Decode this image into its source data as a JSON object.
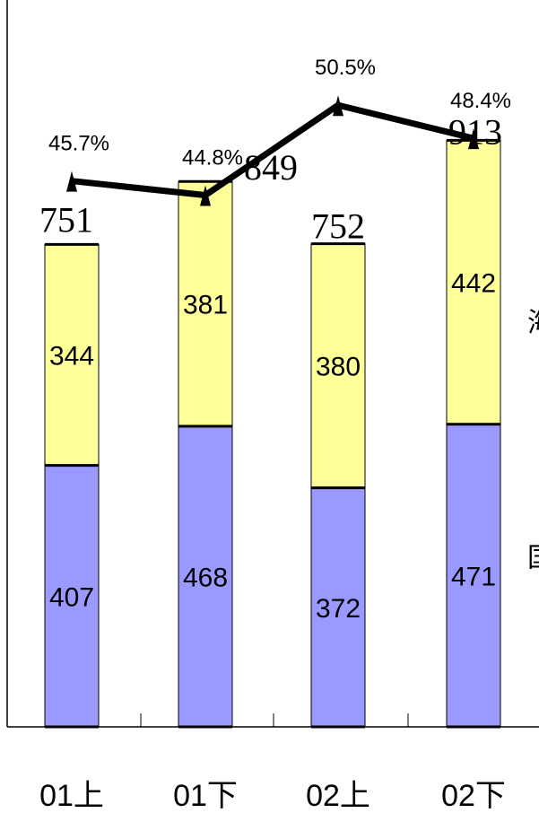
{
  "chart_data": {
    "type": "bar",
    "stacked": true,
    "categories": [
      "01上",
      "01下",
      "02上",
      "02下"
    ],
    "series": [
      {
        "name": "国内",
        "values": [
          407,
          468,
          372,
          471
        ],
        "color": "#9999ff"
      },
      {
        "name": "海外",
        "values": [
          344,
          381,
          380,
          442
        ],
        "color": "#ffff99"
      }
    ],
    "totals": [
      751,
      849,
      752,
      913
    ],
    "line": {
      "values": [
        45.7,
        44.8,
        50.5,
        48.4
      ],
      "labels": [
        "45.7%",
        "44.8%",
        "50.5%",
        "48.4%"
      ],
      "color": "#000000"
    },
    "title": "",
    "xlabel": "",
    "ylabel": "",
    "legend_placement": "right of last bar"
  }
}
